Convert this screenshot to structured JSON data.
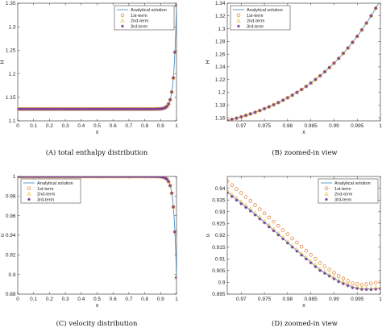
{
  "figure": {
    "series_styles": [
      {
        "name": "Analytical solution",
        "color": "#4a90c4",
        "marker": "line"
      },
      {
        "name": "1st-term",
        "color": "#e07a2e",
        "marker": "circle"
      },
      {
        "name": "2nd-term",
        "color": "#e8c43a",
        "marker": "triangle"
      },
      {
        "name": "3rd-term",
        "color": "#7b3f9e",
        "marker": "star"
      }
    ]
  },
  "chart_data": [
    {
      "type": "line",
      "caption": "(A)  total enthalpy distribution",
      "xlabel": "x",
      "ylabel": "H",
      "xlim": [
        0,
        1
      ],
      "ylim": [
        1.1,
        1.35
      ],
      "xticks": [
        "0",
        "0.1",
        "0.2",
        "0.3",
        "0.4",
        "0.5",
        "0.6",
        "0.7",
        "0.8",
        "0.9",
        "1"
      ],
      "yticks": [
        "1.1",
        "1.15",
        "1.2",
        "1.25",
        "1.3",
        "1.35"
      ],
      "legend": "top-right",
      "grid": false,
      "curve": {
        "kind": "exp_rise",
        "x_range": [
          0,
          1
        ],
        "base": 1.125,
        "end": 1.345,
        "rate": 60
      },
      "marker_count": 101,
      "series": [
        {
          "name": "Analytical solution"
        },
        {
          "name": "1st-term"
        },
        {
          "name": "2nd-term"
        },
        {
          "name": "3rd-term"
        }
      ]
    },
    {
      "type": "line",
      "caption": "(B)  zoomed-in view",
      "xlabel": "x",
      "ylabel": "H",
      "xlim": [
        0.967,
        1
      ],
      "ylim": [
        1.155,
        1.34
      ],
      "xticks": [
        "0.97",
        "0.975",
        "0.98",
        "0.985",
        "0.99",
        "0.995",
        "1"
      ],
      "yticks": [
        "1.16",
        "1.18",
        "1.2",
        "1.22",
        "1.24",
        "1.26",
        "1.28",
        "1.3",
        "1.32",
        "1.34"
      ],
      "legend": "top-left",
      "grid": false,
      "curve": {
        "kind": "exp_rise",
        "x_range": [
          0.967,
          1
        ],
        "base": 1.125,
        "end": 1.345,
        "rate": 60
      },
      "marker_count": 34,
      "series": [
        {
          "name": "Analytical solution"
        },
        {
          "name": "1st-term"
        },
        {
          "name": "2nd-term"
        },
        {
          "name": "3rd-term"
        }
      ]
    },
    {
      "type": "line",
      "caption": "(C)  velocity distribution",
      "xlabel": "x",
      "ylabel": "u",
      "xlim": [
        0,
        1
      ],
      "ylim": [
        0.88,
        1.0
      ],
      "xticks": [
        "0",
        "0.1",
        "0.2",
        "0.3",
        "0.4",
        "0.5",
        "0.6",
        "0.7",
        "0.8",
        "0.9",
        "1"
      ],
      "yticks": [
        "0.88",
        "0.9",
        "0.92",
        "0.94",
        "0.96",
        "0.98",
        "1"
      ],
      "legend": "top-left",
      "grid": false,
      "curve": {
        "kind": "exp_drop",
        "x_range": [
          0,
          1
        ],
        "base": 1.0,
        "end": 0.897,
        "rate": 60
      },
      "marker_count": 101,
      "series": [
        {
          "name": "Analytical solution"
        },
        {
          "name": "1st-term"
        },
        {
          "name": "2nd-term"
        },
        {
          "name": "3rd-term"
        }
      ]
    },
    {
      "type": "line",
      "caption": "(D)  zoomed-in view",
      "xlabel": "x",
      "ylabel": "u",
      "xlim": [
        0.967,
        1
      ],
      "ylim": [
        0.895,
        0.945
      ],
      "xticks": [
        "0.97",
        "0.975",
        "0.98",
        "0.985",
        "0.99",
        "0.995",
        "1"
      ],
      "yticks": [
        "0.895",
        "0.9",
        "0.905",
        "0.91",
        "0.915",
        "0.92",
        "0.925",
        "0.93",
        "0.935",
        "0.94"
      ],
      "legend": "top-right",
      "grid": false,
      "marker_count": 34,
      "series": [
        {
          "name": "Analytical solution",
          "x": [
            0.967,
            0.972,
            0.977,
            0.982,
            0.987,
            0.991,
            0.994,
            0.996,
            0.998,
            1.0
          ],
          "y": [
            0.9385,
            0.9307,
            0.9222,
            0.9135,
            0.9053,
            0.9006,
            0.898,
            0.8973,
            0.8972,
            0.8975
          ]
        },
        {
          "name": "1st-term",
          "x": [
            0.967,
            0.972,
            0.977,
            0.982,
            0.987,
            0.991,
            0.994,
            0.996,
            0.998,
            1.0
          ],
          "y": [
            0.943,
            0.9346,
            0.9258,
            0.9169,
            0.9082,
            0.9027,
            0.8996,
            0.899,
            0.8995,
            0.9002
          ]
        },
        {
          "name": "2nd-term",
          "x": [
            0.967,
            0.972,
            0.977,
            0.982,
            0.987,
            0.991,
            0.994,
            0.996,
            0.998,
            1.0
          ],
          "y": [
            0.939,
            0.9312,
            0.9226,
            0.9139,
            0.9057,
            0.9009,
            0.8983,
            0.8976,
            0.8975,
            0.8978
          ]
        },
        {
          "name": "3rd-term",
          "x": [
            0.967,
            0.972,
            0.977,
            0.982,
            0.987,
            0.991,
            0.994,
            0.996,
            0.998,
            1.0
          ],
          "y": [
            0.938,
            0.9303,
            0.9219,
            0.9132,
            0.905,
            0.9003,
            0.8977,
            0.897,
            0.8969,
            0.8972
          ]
        }
      ]
    }
  ]
}
